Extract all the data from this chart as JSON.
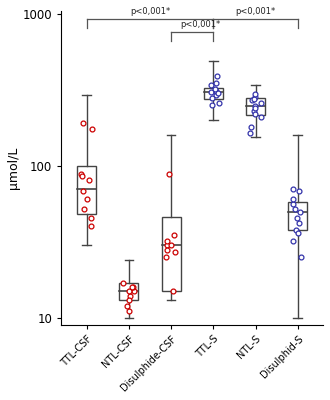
{
  "categories": [
    "TTL-CSF",
    "NTL-CSF",
    "Disulphide-CSF",
    "TTL-S",
    "NTL-S",
    "Disulphid-S"
  ],
  "colors": [
    "#cc0000",
    "#cc0000",
    "#cc0000",
    "#3333aa",
    "#3333aa",
    "#3333aa"
  ],
  "ylabel": "μmol/L",
  "boxes": [
    {
      "q1": 48,
      "median": 70,
      "q3": 100,
      "whisker_low": 30,
      "whisker_high": 290,
      "dots": [
        68,
        80,
        52,
        60,
        88,
        45,
        40,
        85,
        175,
        190
      ]
    },
    {
      "q1": 13,
      "median": 15,
      "q3": 17,
      "whisker_low": 10,
      "whisker_high": 24,
      "dots": [
        12,
        14,
        15,
        16,
        17,
        13,
        11,
        15,
        16
      ]
    },
    {
      "q1": 15,
      "median": 30,
      "q3": 46,
      "whisker_low": 13,
      "whisker_high": 160,
      "dots": [
        30,
        35,
        25,
        28,
        32,
        88,
        15,
        30,
        27
      ]
    },
    {
      "q1": 275,
      "median": 305,
      "q3": 325,
      "whisker_low": 200,
      "whisker_high": 490,
      "dots": [
        305,
        290,
        310,
        340,
        280,
        260,
        320,
        300,
        350,
        390,
        250
      ]
    },
    {
      "q1": 215,
      "median": 248,
      "q3": 278,
      "whisker_low": 155,
      "whisker_high": 340,
      "dots": [
        248,
        230,
        260,
        270,
        210,
        285,
        240,
        220,
        275,
        295,
        165,
        180
      ]
    },
    {
      "q1": 38,
      "median": 50,
      "q3": 58,
      "whisker_low": 10,
      "whisker_high": 160,
      "dots": [
        50,
        42,
        56,
        38,
        52,
        60,
        36,
        45,
        32,
        68,
        25,
        70
      ]
    }
  ],
  "background_color": "#ffffff",
  "box_width": 0.45,
  "dot_size": 3.5
}
